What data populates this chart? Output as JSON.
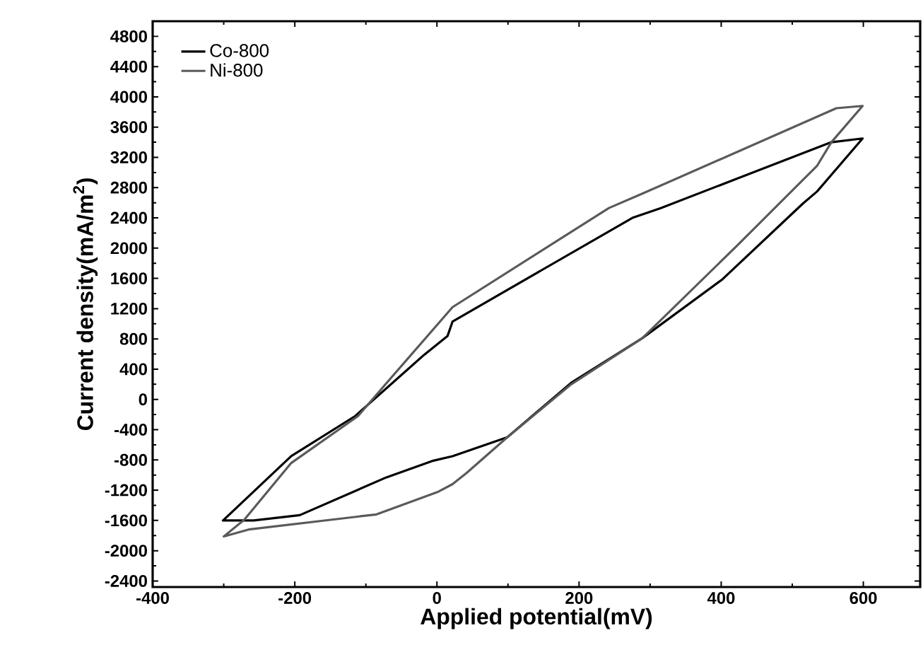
{
  "chart_data": {
    "type": "line",
    "xlabel": "Applied potential(mV)",
    "ylabel": "Current density(mA/m$^{2}$)",
    "xlim": [
      -400,
      680
    ],
    "ylim": [
      -2480,
      5000
    ],
    "xticks": [
      -400,
      -200,
      0,
      200,
      400,
      600
    ],
    "yticks": [
      -2400,
      -2000,
      -1600,
      -1200,
      -800,
      -400,
      0,
      400,
      800,
      1200,
      1600,
      2000,
      2400,
      2800,
      3200,
      3600,
      4000,
      4400,
      4800
    ],
    "legend": "top left",
    "grid": false,
    "marker": "none",
    "line_style": "solid",
    "series": [
      {
        "name": "Co-800",
        "color": "#000000",
        "x": [
          -302,
          -205,
          -115,
          -18,
          15,
          22,
          275,
          315,
          555,
          599,
          535,
          515,
          402,
          289,
          189,
          99,
          22,
          -5,
          -71,
          -193,
          -258,
          -300
        ],
        "values": [
          -1610,
          -750,
          -220,
          590,
          840,
          1030,
          2400,
          2530,
          3400,
          3450,
          2750,
          2590,
          1590,
          810,
          220,
          -500,
          -750,
          -810,
          -1030,
          -1530,
          -1600,
          -1600
        ]
      },
      {
        "name": "Ni-800",
        "color": "#5a5a5a",
        "x": [
          -301,
          -271,
          -205,
          -111,
          -65,
          22,
          242,
          289,
          562,
          599,
          555,
          535,
          422,
          289,
          189,
          99,
          42,
          22,
          2,
          -85,
          -265,
          -299
        ],
        "values": [
          -1820,
          -1590,
          -840,
          -220,
          280,
          1220,
          2530,
          2720,
          3850,
          3880,
          3400,
          3090,
          2030,
          810,
          200,
          -500,
          -970,
          -1120,
          -1220,
          -1520,
          -1720,
          -1810
        ]
      }
    ]
  }
}
